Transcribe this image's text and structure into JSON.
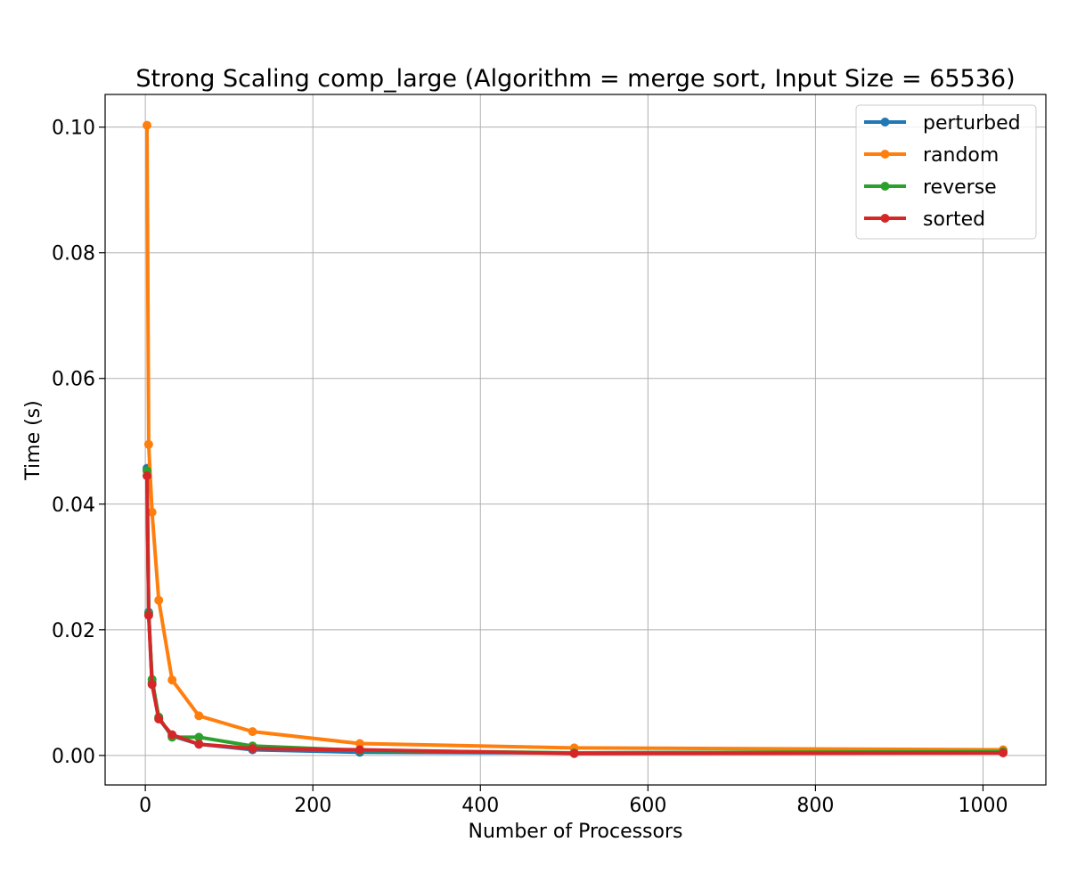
{
  "chart_data": {
    "type": "line",
    "title": "Strong Scaling comp_large (Algorithm = merge sort, Input Size = 65536)",
    "xlabel": "Number of Processors",
    "ylabel": "Time (s)",
    "xlim": [
      -48,
      1075
    ],
    "ylim": [
      -0.0047,
      0.1052
    ],
    "xticks": [
      0,
      200,
      400,
      600,
      800,
      1000
    ],
    "xtick_labels": [
      "0",
      "200",
      "400",
      "600",
      "800",
      "1000"
    ],
    "yticks": [
      0.0,
      0.02,
      0.04,
      0.06,
      0.08,
      0.1
    ],
    "ytick_labels": [
      "0.00",
      "0.02",
      "0.04",
      "0.06",
      "0.08",
      "0.10"
    ],
    "grid": true,
    "legend_position": "top-right",
    "x": [
      2,
      4,
      8,
      16,
      32,
      64,
      128,
      256,
      512,
      1024
    ],
    "series": [
      {
        "name": "perturbed",
        "color": "#1f77b4",
        "values": [
          0.0457,
          0.0228,
          0.0116,
          0.0059,
          0.0031,
          0.0018,
          0.0009,
          0.0005,
          0.0004,
          0.0006
        ]
      },
      {
        "name": "random",
        "color": "#ff7f0e",
        "values": [
          0.1003,
          0.0495,
          0.0387,
          0.0247,
          0.012,
          0.0063,
          0.0038,
          0.0019,
          0.0012,
          0.0009
        ]
      },
      {
        "name": "reverse",
        "color": "#2ca02c",
        "values": [
          0.0453,
          0.0226,
          0.0121,
          0.0061,
          0.0029,
          0.0029,
          0.0015,
          0.0008,
          0.0004,
          0.0006
        ]
      },
      {
        "name": "sorted",
        "color": "#d62728",
        "values": [
          0.0445,
          0.0223,
          0.0113,
          0.0058,
          0.0033,
          0.0018,
          0.0011,
          0.0009,
          0.0003,
          0.0004
        ]
      }
    ]
  }
}
